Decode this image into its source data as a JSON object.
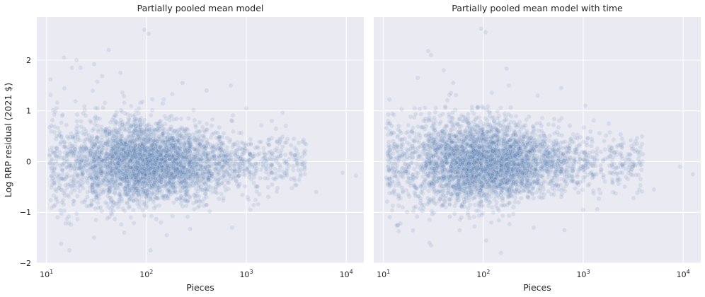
{
  "figure": {
    "ylabel": "Log RRP residual (2021 $)"
  },
  "chart_data": [
    {
      "type": "scatter",
      "title": "Partially pooled mean model",
      "xlabel": "Pieces",
      "ylabel": "Log RRP residual (2021 $)",
      "xscale": "log",
      "xlim": [
        8,
        15000
      ],
      "ylim": [
        -2.0,
        2.85
      ],
      "xticks": [
        10,
        100,
        1000,
        10000
      ],
      "xtick_labels": [
        {
          "base": "10",
          "exp": "1"
        },
        {
          "base": "10",
          "exp": "2"
        },
        {
          "base": "10",
          "exp": "3"
        },
        {
          "base": "10",
          "exp": "4"
        }
      ],
      "yticks": [
        -2,
        -1,
        0,
        1,
        2
      ],
      "ytick_labels": [
        "−2",
        "−1",
        "0",
        "1",
        "2"
      ],
      "grid": true,
      "color": "#4c72b0",
      "point_alpha": 0.12,
      "seed": 11,
      "points": [
        [
          15,
          2.05
        ],
        [
          18,
          1.85
        ],
        [
          20,
          2.0
        ],
        [
          22,
          1.85
        ],
        [
          30,
          1.92
        ],
        [
          42,
          2.2
        ],
        [
          55,
          1.75
        ],
        [
          95,
          2.6
        ],
        [
          105,
          2.52
        ],
        [
          230,
          1.55
        ],
        [
          11,
          1.62
        ],
        [
          12,
          0.58
        ],
        [
          25,
          0.6
        ],
        [
          14,
          -1.62
        ],
        [
          17,
          -1.75
        ],
        [
          30,
          -1.5
        ],
        [
          60,
          -1.4
        ],
        [
          110,
          -1.75
        ],
        [
          140,
          -1.2
        ],
        [
          160,
          -1.45
        ],
        [
          720,
          -1.3
        ],
        [
          1100,
          -0.95
        ],
        [
          12500,
          -0.28
        ],
        [
          9200,
          -0.22
        ],
        [
          5000,
          -0.6
        ],
        [
          3000,
          0.45
        ],
        [
          1800,
          0.8
        ],
        [
          1000,
          1.05
        ],
        [
          700,
          1.5
        ],
        [
          400,
          1.4
        ]
      ]
    },
    {
      "type": "scatter",
      "title": "Partially pooled mean model with time",
      "xlabel": "Pieces",
      "ylabel": "",
      "xscale": "log",
      "xlim": [
        8,
        15000
      ],
      "ylim": [
        -2.0,
        2.85
      ],
      "xticks": [
        10,
        100,
        1000,
        10000
      ],
      "xtick_labels": [
        {
          "base": "10",
          "exp": "1"
        },
        {
          "base": "10",
          "exp": "2"
        },
        {
          "base": "10",
          "exp": "3"
        },
        {
          "base": "10",
          "exp": "4"
        }
      ],
      "yticks": [
        -2,
        -1,
        0,
        1,
        2
      ],
      "grid": true,
      "color": "#4c72b0",
      "point_alpha": 0.12,
      "seed": 29,
      "points": [
        [
          28,
          2.18
        ],
        [
          30,
          2.1
        ],
        [
          40,
          1.8
        ],
        [
          22,
          1.65
        ],
        [
          95,
          2.62
        ],
        [
          105,
          2.55
        ],
        [
          180,
          1.5
        ],
        [
          50,
          1.55
        ],
        [
          11,
          0.75
        ],
        [
          12,
          0.55
        ],
        [
          14,
          -1.25
        ],
        [
          30,
          -1.65
        ],
        [
          58,
          -1.35
        ],
        [
          120,
          -1.2
        ],
        [
          150,
          -1.8
        ],
        [
          320,
          -1.3
        ],
        [
          650,
          -1.35
        ],
        [
          1000,
          -0.95
        ],
        [
          12500,
          -0.25
        ],
        [
          9300,
          -0.1
        ],
        [
          5100,
          -0.55
        ],
        [
          3000,
          0.42
        ],
        [
          1800,
          0.75
        ],
        [
          1050,
          1.1
        ],
        [
          600,
          1.45
        ],
        [
          350,
          1.3
        ]
      ]
    }
  ]
}
